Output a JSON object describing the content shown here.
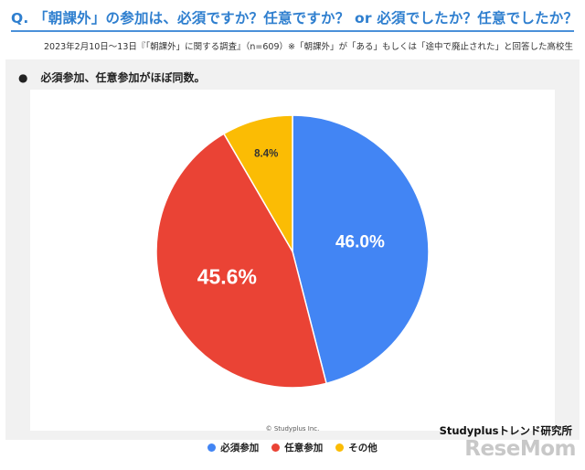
{
  "question": "Q. 「朝課外」の参加は、必須ですか？任意ですか？ or 必須でしたか？任意でしたか？",
  "subtitle": "2023年2月10日～13日『「朝課外」に関する調査』（n=609）※「朝課外」が「ある」もしくは「途中で廃止された」と回答した高校生",
  "bullet": {
    "dot": "●",
    "text": "必須参加、任意参加がほぼ同数。"
  },
  "chart_data": {
    "type": "pie",
    "title": "",
    "categories": [
      "必須参加",
      "任意参加",
      "その他"
    ],
    "values": [
      46.0,
      45.6,
      8.4
    ],
    "labels": [
      "46.0%",
      "45.6%",
      "8.4%"
    ],
    "colors": [
      "#4285f4",
      "#ea4335",
      "#fbbc04"
    ],
    "legend": "bottom",
    "start": "top, clockwise"
  },
  "copyright": "© Studyplus Inc.",
  "brand": "Studyplusトレンド研究所",
  "watermark": "ReseMom"
}
